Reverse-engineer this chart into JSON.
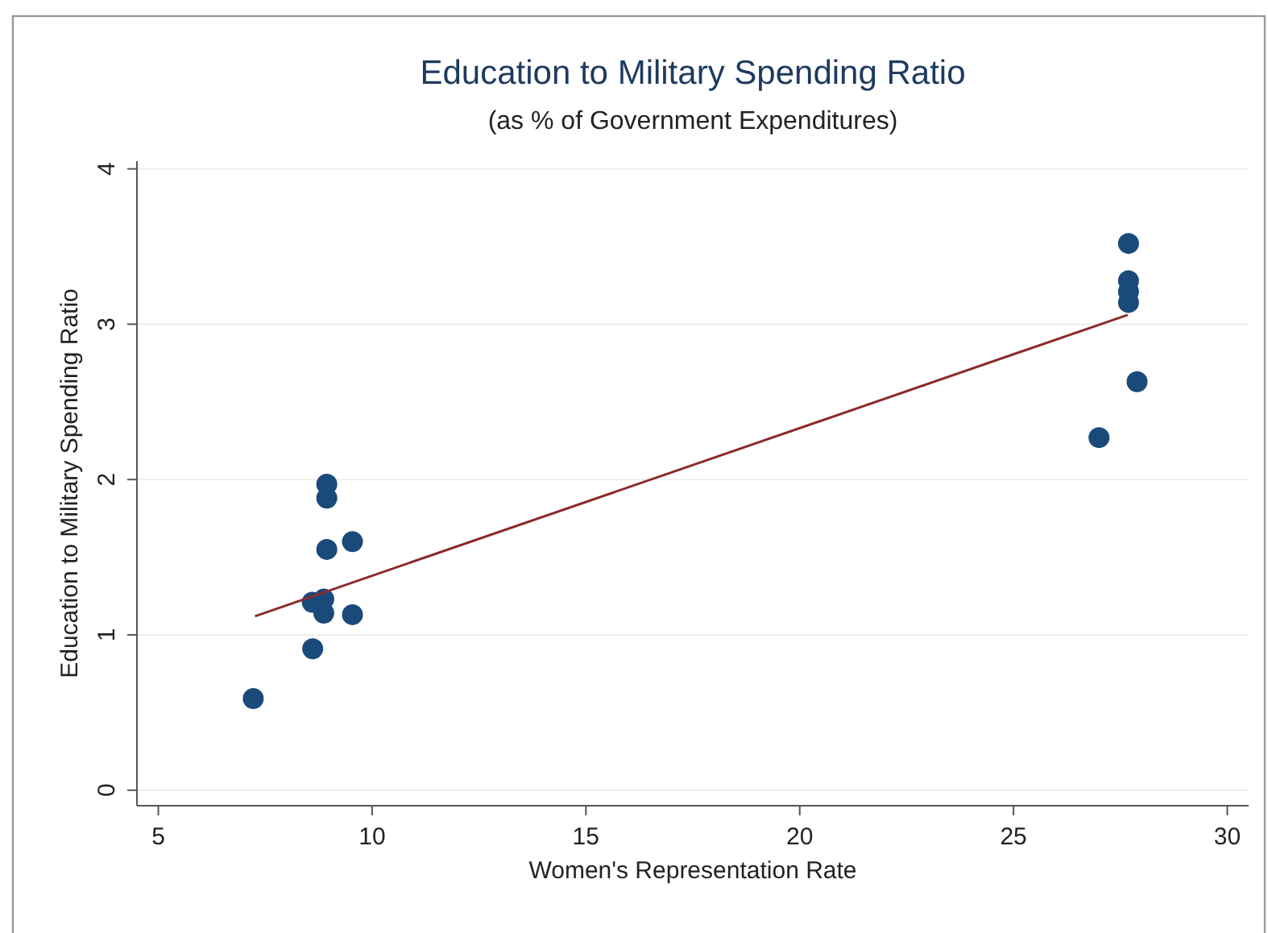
{
  "chart_data": {
    "type": "scatter",
    "title": "Education to Military Spending Ratio",
    "subtitle": "(as % of Government Expenditures)",
    "xlabel": "Women's Representation Rate",
    "ylabel": "Education to Military Spending Ratio",
    "xlim": [
      4.5,
      30.5
    ],
    "ylim": [
      -0.1,
      4.05
    ],
    "xticks": [
      5,
      10,
      15,
      20,
      25,
      30
    ],
    "yticks": [
      0,
      1,
      2,
      3,
      4
    ],
    "grid": "y",
    "series": [
      {
        "marker": "circle",
        "color": "#1a4a7a",
        "x": [
          7.22,
          8.61,
          8.94,
          8.94,
          8.94,
          9.54,
          8.6,
          8.87,
          8.87,
          9.54,
          27.69,
          27.69,
          27.69,
          27.69,
          27.89,
          27.0
        ],
        "values": [
          0.59,
          0.91,
          1.97,
          1.88,
          1.55,
          1.6,
          1.21,
          1.23,
          1.14,
          1.13,
          3.52,
          3.28,
          3.21,
          3.14,
          2.63,
          2.27
        ]
      },
      {
        "type": "line",
        "color": "#8b2a2a",
        "x": [
          7.26,
          27.67
        ],
        "values": [
          1.12,
          3.06
        ]
      }
    ]
  }
}
